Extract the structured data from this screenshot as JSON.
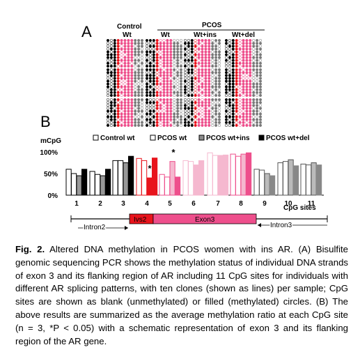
{
  "panel_a": {
    "letter": "A",
    "control_label": "Control",
    "pcos_label": "PCOS",
    "groups": [
      "Wt",
      "Wt",
      "Wt+ins",
      "Wt+del"
    ]
  },
  "panel_b": {
    "letter": "B",
    "ylabel": "mCpG",
    "xlabel": "CpG sites",
    "exon_labels": {
      "intron2": "Intron2",
      "ivs2": "Ivs2",
      "exon3": "Exon3",
      "intron3": "Intron3"
    }
  },
  "chart_data": {
    "type": "bar",
    "categories": [
      "1",
      "2",
      "3",
      "4",
      "5",
      "6",
      "7",
      "8",
      "9",
      "10",
      "11"
    ],
    "yticks": [
      "0%",
      "50%",
      "100%"
    ],
    "ylim": [
      0,
      100
    ],
    "xlabel": "CpG sites",
    "ylabel": "mCpG",
    "legend_position": "top",
    "series": [
      {
        "name": "Control wt",
        "values": [
          60,
          55,
          80,
          85,
          48,
          80,
          98,
          95,
          60,
          75,
          72
        ]
      },
      {
        "name": "PCOS wt",
        "values": [
          50,
          48,
          80,
          80,
          42,
          78,
          92,
          90,
          58,
          78,
          70
        ]
      },
      {
        "name": "PCOS wt+ins",
        "values": [
          45,
          45,
          75,
          40,
          78,
          70,
          92,
          95,
          50,
          82,
          75
        ]
      },
      {
        "name": "PCOS wt+del",
        "values": [
          60,
          60,
          90,
          86,
          42,
          80,
          93,
          98,
          45,
          68,
          70
        ]
      }
    ],
    "annotations": [
      {
        "category": "4",
        "text": "*"
      },
      {
        "category": "5",
        "text": "*"
      }
    ]
  },
  "caption": {
    "fig_label": "Fig. 2.",
    "text": "Altered DNA methylation in PCOS women with ins AR. (A) Bisulfite genomic sequencing PCR shows the methylation status of individual DNA strands of exon 3 and its flanking region of AR including 11 CpG sites for individuals with different AR splicing patterns, with ten clones (shown as lines) per sample; CpG sites are shown as blank (unmethylated) or filled (methylated) circles. (B) The above results are summarized as the average methylation ratio at each CpG site (n = 3, *P < 0.05) with a schematic representation of exon 3 and its flanking region of the AR gene."
  },
  "colors": {
    "black": "#000000",
    "red": "#e8141c",
    "pink": "#ee4f8c",
    "lightpink": "#f5b8cf",
    "gray": "#7a7a7a",
    "lightgray": "#b8b8b8"
  }
}
